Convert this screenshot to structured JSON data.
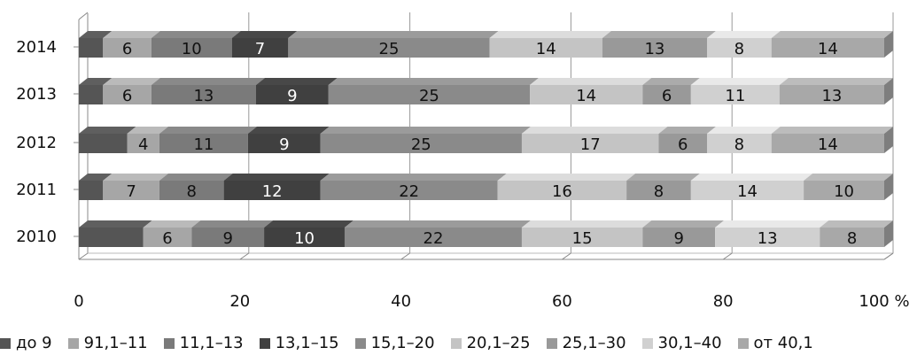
{
  "chart_data": {
    "type": "bar",
    "orientation": "horizontal",
    "stacked": "percent",
    "categories": [
      "2014",
      "2013",
      "2012",
      "2011",
      "2010"
    ],
    "series": [
      {
        "name": "до 9",
        "values": [
          3,
          3,
          6,
          3,
          8
        ],
        "color": "#555555"
      },
      {
        "name": "91,1–11",
        "values": [
          6,
          6,
          4,
          7,
          6
        ],
        "color": "#a6a6a6"
      },
      {
        "name": "11,1–13",
        "values": [
          10,
          13,
          11,
          8,
          9
        ],
        "color": "#7a7a7a"
      },
      {
        "name": "13,1–15",
        "values": [
          7,
          9,
          9,
          12,
          10
        ],
        "color": "#404040"
      },
      {
        "name": "15,1–20",
        "values": [
          25,
          25,
          25,
          22,
          22
        ],
        "color": "#8a8a8a"
      },
      {
        "name": "20,1–25",
        "values": [
          14,
          14,
          17,
          16,
          15
        ],
        "color": "#c4c4c4"
      },
      {
        "name": "25,1–30",
        "values": [
          13,
          6,
          6,
          8,
          9
        ],
        "color": "#999999"
      },
      {
        "name": "30,1–40",
        "values": [
          8,
          11,
          8,
          14,
          13
        ],
        "color": "#d0d0d0"
      },
      {
        "name": "от 40,1",
        "values": [
          14,
          13,
          14,
          10,
          8
        ],
        "color": "#a8a8a8"
      }
    ],
    "data_labels": [
      [
        "",
        "6",
        "10",
        "7",
        "25",
        "14",
        "13",
        "8",
        "14"
      ],
      [
        "",
        "6",
        "13",
        "9",
        "25",
        "14",
        "6",
        "11",
        "13"
      ],
      [
        "",
        "4",
        "11",
        "9",
        "25",
        "17",
        "6",
        "8",
        "14"
      ],
      [
        "",
        "7",
        "8",
        "12",
        "22",
        "16",
        "8",
        "14",
        "10"
      ],
      [
        "",
        "6",
        "9",
        "10",
        "22",
        "15",
        "9",
        "13",
        "8"
      ]
    ],
    "xticks": [
      "0",
      "20",
      "40",
      "60",
      "80",
      "100 %"
    ],
    "xlim": [
      0,
      100
    ],
    "grid": true,
    "legend_position": "bottom"
  }
}
